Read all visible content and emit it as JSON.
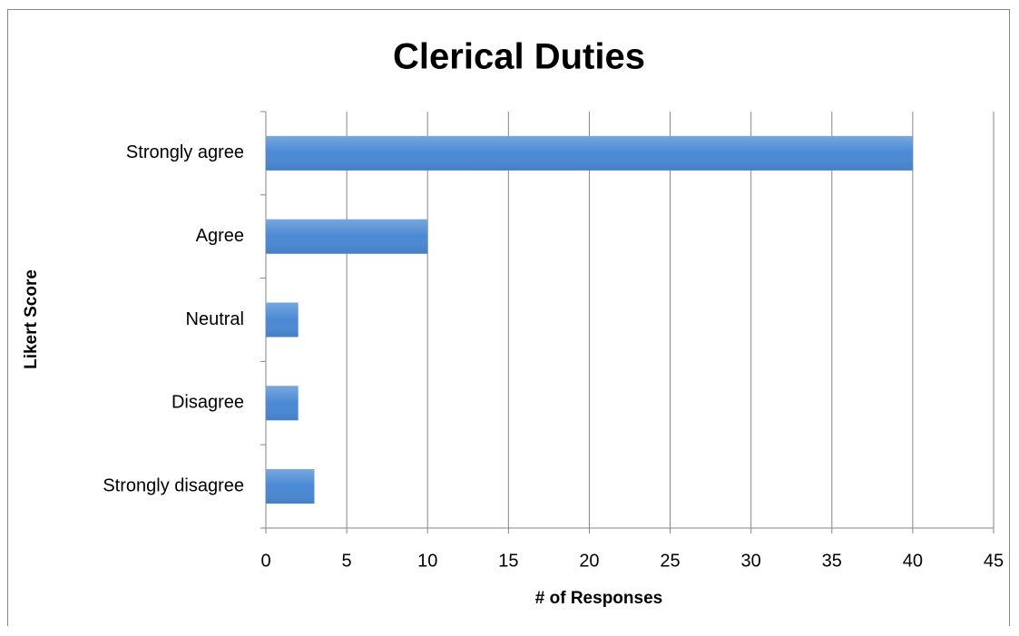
{
  "chart_data": {
    "type": "bar",
    "orientation": "horizontal",
    "title": "Clerical Duties",
    "x_label": "# of Responses",
    "y_label": "Likert Score",
    "categories": [
      "Strongly agree",
      "Agree",
      "Neutral",
      "Disagree",
      "Strongly disagree"
    ],
    "values": [
      40,
      10,
      2,
      2,
      3
    ],
    "color": "#4a89d4",
    "xlim": [
      0,
      45
    ],
    "xticks": [
      0,
      5,
      10,
      15,
      20,
      25,
      30,
      35,
      40,
      45
    ],
    "grid": true
  }
}
